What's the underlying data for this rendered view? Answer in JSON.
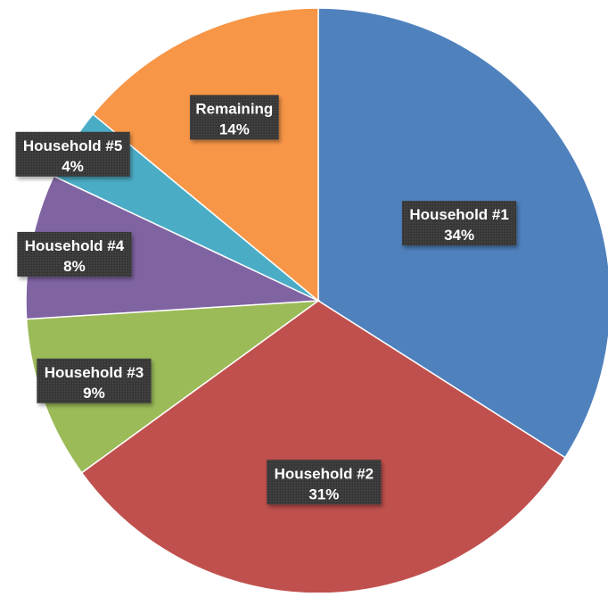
{
  "chart_data": {
    "type": "pie",
    "title": "",
    "start_angle_deg": 0,
    "direction": "clockwise",
    "slices": [
      {
        "label": "Household #1",
        "value": 34,
        "value_label": "34%",
        "color": "#4F81BD"
      },
      {
        "label": "Household #2",
        "value": 31,
        "value_label": "31%",
        "color": "#C0504D"
      },
      {
        "label": "Household #3",
        "value": 9,
        "value_label": "9%",
        "color": "#9BBB59"
      },
      {
        "label": "Household #4",
        "value": 8,
        "value_label": "8%",
        "color": "#8064A2"
      },
      {
        "label": "Household #5",
        "value": 4,
        "value_label": "4%",
        "color": "#4BACC6"
      },
      {
        "label": "Remaining",
        "value": 14,
        "value_label": "14%",
        "color": "#F79646"
      }
    ],
    "data_label_style": {
      "background": "#3a3a3a",
      "text_color": "#ffffff"
    },
    "legend": "none",
    "grid": false
  }
}
